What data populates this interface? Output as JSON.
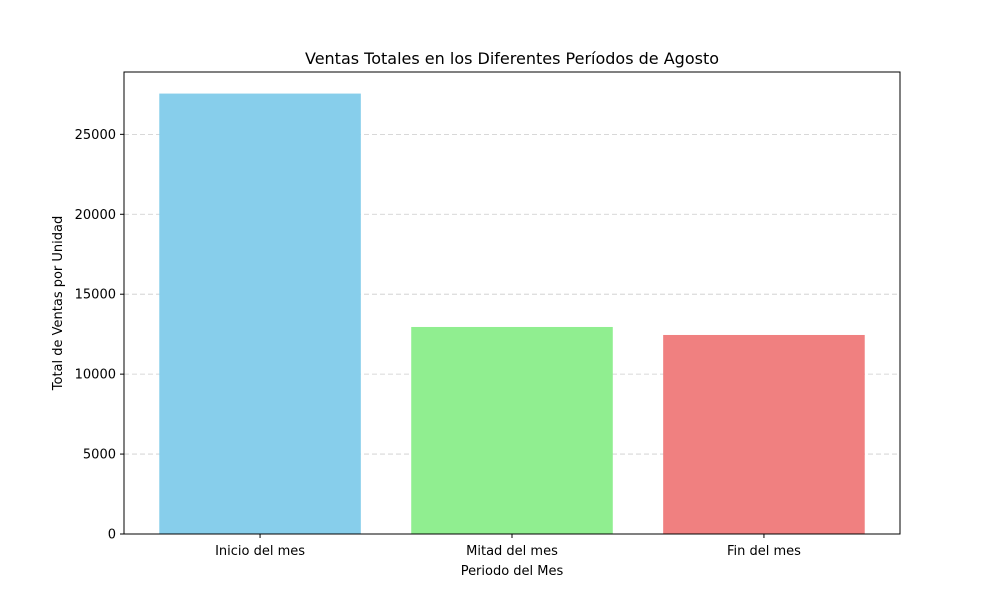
{
  "chart_data": {
    "type": "bar",
    "title": "Ventas Totales en los Diferentes Períodos de Agosto",
    "xlabel": "Periodo del Mes",
    "ylabel": "Total de Ventas por Unidad",
    "categories": [
      "Inicio del mes",
      "Mitad del mes",
      "Fin del mes"
    ],
    "values": [
      27550,
      12950,
      12450
    ],
    "colors": [
      "#87ceeb",
      "#90ee90",
      "#f08080"
    ],
    "ylim": [
      0,
      28900
    ],
    "yticks": [
      0,
      5000,
      10000,
      15000,
      20000,
      25000
    ],
    "grid": "horizontal dashed",
    "legend": "none"
  }
}
